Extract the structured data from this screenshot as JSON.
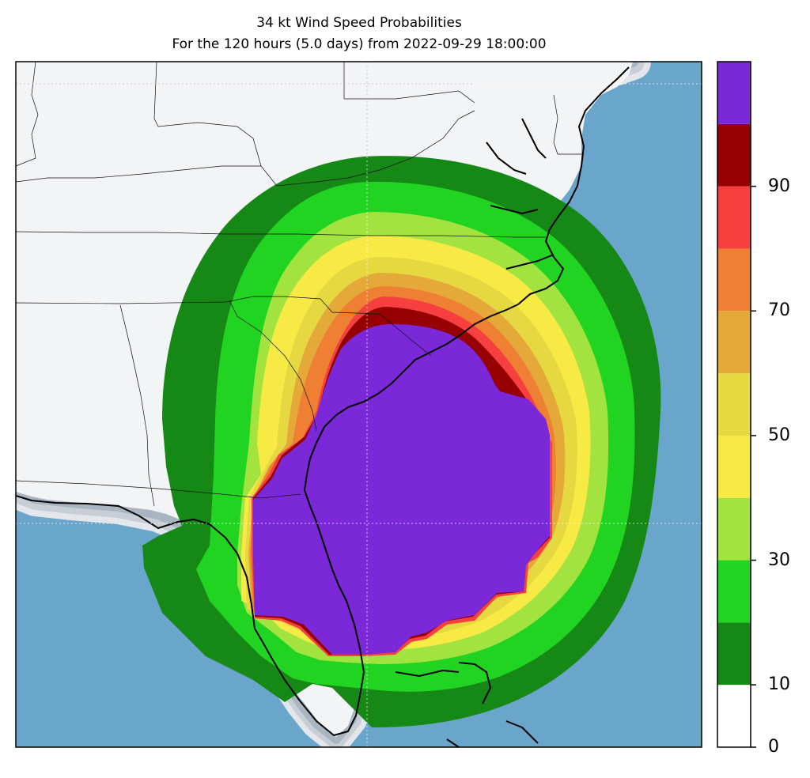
{
  "title": {
    "line1": "34 kt Wind Speed Probabilities",
    "line2": "For the 120 hours (5.0 days) from 2022-09-29 18:00:00"
  },
  "colorbar": {
    "range": [
      0,
      100
    ],
    "bands": [
      {
        "from": 0,
        "to": 10,
        "color": "#ffffff"
      },
      {
        "from": 10,
        "to": 20,
        "color": "#168816"
      },
      {
        "from": 20,
        "to": 30,
        "color": "#22d422"
      },
      {
        "from": 30,
        "to": 40,
        "color": "#a3e340"
      },
      {
        "from": 40,
        "to": 50,
        "color": "#f8ea45"
      },
      {
        "from": 50,
        "to": 60,
        "color": "#e5d840"
      },
      {
        "from": 60,
        "to": 70,
        "color": "#e5a93a"
      },
      {
        "from": 70,
        "to": 80,
        "color": "#ee7f33"
      },
      {
        "from": 80,
        "to": 90,
        "color": "#f64040"
      },
      {
        "from": 90,
        "to": 100,
        "color": "#960000"
      }
    ],
    "top_color": "#7b28d8",
    "tick_labels": [
      "0",
      "10",
      "30",
      "50",
      "70",
      "90"
    ]
  },
  "map": {
    "ocean_color": "#6aa6cc",
    "land_color": "#f3f4f6",
    "gridlines": true
  }
}
